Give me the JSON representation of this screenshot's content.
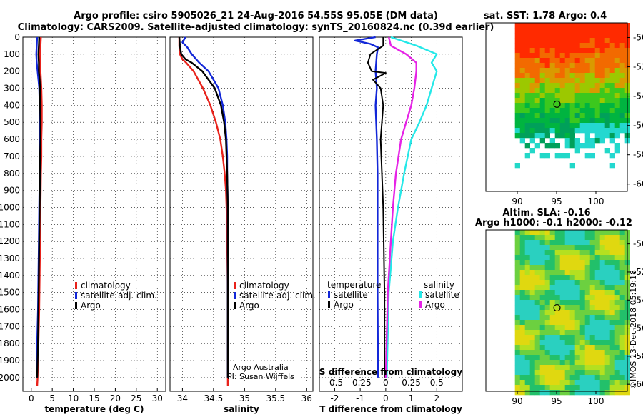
{
  "header": {
    "title_line1": "Argo profile: csiro 5905026_21 24-Aug-2016 54.55S 95.05E (DM data)",
    "title_line2": "Climatology: CARS2009. Satellite-adjusted climatology: synTS_20160824.nc (0.39d earlier)"
  },
  "colors": {
    "climatology": "#e8221b",
    "satellite": "#1227d8",
    "argo": "#000000",
    "sal_satellite": "#24e8e8",
    "sal_argo": "#e622e6"
  },
  "depth_axis": {
    "ticks": [
      "0",
      "100",
      "200",
      "300",
      "400",
      "500",
      "600",
      "700",
      "800",
      "900",
      "1000",
      "1100",
      "1200",
      "1300",
      "1400",
      "1500",
      "1600",
      "1700",
      "1800",
      "1900",
      "2000"
    ]
  },
  "chart_data": [
    {
      "type": "line",
      "name": "temperature",
      "xlabel": "temperature (deg C)",
      "xlim": [
        -2,
        32
      ],
      "ylim": [
        2080,
        0
      ],
      "xticks": [
        "0",
        "5",
        "10",
        "15",
        "20",
        "25",
        "30"
      ],
      "legend": [
        "climatology",
        "satellite-adj. clim.",
        "Argo"
      ],
      "series": [
        {
          "name": "climatology",
          "depth": [
            0,
            50,
            100,
            150,
            200,
            250,
            300,
            400,
            500,
            600,
            700,
            800,
            1000,
            1200,
            1400,
            1600,
            1800,
            2000,
            2050
          ],
          "values": [
            2.3,
            2.2,
            2.1,
            2.1,
            2.2,
            2.3,
            2.4,
            2.5,
            2.5,
            2.4,
            2.4,
            2.3,
            2.2,
            2.1,
            2.0,
            1.9,
            1.7,
            1.5,
            1.4
          ]
        },
        {
          "name": "satellite-adj. clim.",
          "depth": [
            0,
            50,
            100,
            150,
            200,
            250,
            300,
            400,
            500,
            600,
            700,
            800,
            1000,
            1200,
            1400,
            1600,
            1800,
            2000
          ],
          "values": [
            1.4,
            1.3,
            1.2,
            1.3,
            1.5,
            1.7,
            1.9,
            2.0,
            2.1,
            2.1,
            2.1,
            2.0,
            1.9,
            1.8,
            1.7,
            1.6,
            1.4,
            1.3
          ]
        },
        {
          "name": "Argo",
          "depth": [
            0,
            50,
            100,
            150,
            200,
            250,
            300,
            400,
            500,
            600,
            700,
            800,
            1000,
            1200,
            1400,
            1600,
            1800,
            2000
          ],
          "values": [
            1.9,
            1.8,
            1.7,
            1.8,
            1.8,
            2.0,
            2.1,
            2.1,
            2.2,
            2.2,
            2.1,
            2.1,
            2.0,
            1.9,
            1.8,
            1.7,
            1.6,
            1.4
          ]
        }
      ]
    },
    {
      "type": "line",
      "name": "salinity",
      "xlabel": "salinity",
      "xlim": [
        33.8,
        36.1
      ],
      "ylim": [
        2080,
        0
      ],
      "xticks": [
        "34",
        "34.5",
        "35",
        "35.5",
        "36"
      ],
      "legend": [
        "climatology",
        "satellite-adj. clim.",
        "Argo"
      ],
      "annotations": [
        "Argo Australia",
        "PI: Susan Wijffels"
      ],
      "series": [
        {
          "name": "climatology",
          "depth": [
            0,
            50,
            100,
            130,
            150,
            200,
            300,
            400,
            500,
            600,
            700,
            800,
            900,
            1000,
            1200,
            1500,
            2000,
            2050
          ],
          "values": [
            33.95,
            33.95,
            33.96,
            34.0,
            34.06,
            34.18,
            34.33,
            34.45,
            34.54,
            34.61,
            34.65,
            34.68,
            34.7,
            34.71,
            34.72,
            34.73,
            34.73,
            34.73
          ]
        },
        {
          "name": "satellite-adj. clim.",
          "depth": [
            0,
            30,
            60,
            100,
            150,
            200,
            300,
            400,
            500,
            600,
            700,
            800,
            1000,
            1500,
            2000
          ],
          "values": [
            34.05,
            34.0,
            34.08,
            34.15,
            34.27,
            34.42,
            34.58,
            34.65,
            34.69,
            34.71,
            34.72,
            34.72,
            34.73,
            34.73,
            34.73
          ]
        },
        {
          "name": "Argo",
          "depth": [
            0,
            50,
            100,
            130,
            150,
            200,
            300,
            400,
            500,
            600,
            700,
            800,
            1000,
            1500,
            2000
          ],
          "values": [
            33.95,
            33.96,
            33.98,
            34.05,
            34.15,
            34.32,
            34.52,
            34.62,
            34.67,
            34.7,
            34.71,
            34.72,
            34.73,
            34.73,
            34.73
          ]
        }
      ]
    },
    {
      "type": "line",
      "name": "difference from climatology",
      "xlabel": "T difference from climatology",
      "xlabel_top": "S difference from climatology",
      "xlim": [
        -2.6,
        3.0
      ],
      "s_xlim": [
        -0.65,
        0.75
      ],
      "ylim": [
        2080,
        0
      ],
      "xticks": [
        "-2",
        "-1",
        "0",
        "1",
        "2"
      ],
      "s_xticks": [
        "-0.5",
        "-0.25",
        "0",
        "0.25",
        "0.5"
      ],
      "legend_temp_title": "temperature",
      "legend_sal_title": "salinity",
      "legend_temp": [
        "satellite",
        "Argo"
      ],
      "legend_sal": [
        "satellite",
        "Argo"
      ],
      "series": [
        {
          "name": "temperature satellite",
          "depth": [
            0,
            20,
            40,
            60,
            100,
            200,
            300,
            400,
            600,
            800,
            1000,
            1500,
            2000
          ],
          "values": [
            -0.4,
            -1.2,
            -0.6,
            -0.3,
            -0.35,
            -0.4,
            -0.35,
            -0.4,
            -0.35,
            -0.32,
            -0.32,
            -0.32,
            -0.3
          ]
        },
        {
          "name": "temperature Argo",
          "depth": [
            0,
            50,
            100,
            150,
            200,
            210,
            250,
            300,
            400,
            600,
            800,
            1000,
            1500,
            2000
          ],
          "values": [
            -0.1,
            -0.1,
            -0.6,
            -0.7,
            -0.55,
            0.0,
            -0.5,
            -0.2,
            -0.1,
            -0.2,
            -0.15,
            -0.1,
            -0.05,
            -0.05
          ]
        },
        {
          "name": "salinity satellite",
          "depth": [
            0,
            50,
            100,
            150,
            200,
            300,
            400,
            500,
            600,
            800,
            1000,
            1200,
            1500,
            2000
          ],
          "values": [
            0.05,
            0.3,
            0.5,
            0.45,
            0.5,
            0.45,
            0.4,
            0.33,
            0.25,
            0.18,
            0.12,
            0.07,
            0.03,
            0.01
          ]
        },
        {
          "name": "salinity Argo",
          "depth": [
            0,
            50,
            100,
            150,
            200,
            300,
            400,
            500,
            600,
            800,
            1000,
            1200,
            1500,
            2000
          ],
          "values": [
            0.03,
            0.05,
            0.2,
            0.3,
            0.3,
            0.28,
            0.25,
            0.2,
            0.15,
            0.1,
            0.07,
            0.05,
            0.02,
            0.0
          ]
        }
      ]
    },
    {
      "type": "heatmap",
      "name": "sat. SST",
      "title": "sat. SST: 1.78 Argo: 0.4",
      "xticks": [
        "90",
        "95",
        "100"
      ],
      "yticks": [
        "-50",
        "-52",
        "-54",
        "-56",
        "-58",
        "-60"
      ],
      "xlim": [
        86,
        104
      ],
      "ylim": [
        -60.5,
        -49
      ],
      "float_position": {
        "lon": 95.05,
        "lat": -54.55
      }
    },
    {
      "type": "heatmap",
      "name": "Altim. SLA",
      "title_line1": "Altim. SLA: -0.16",
      "title_line2": "Argo h1000: -0.1 h2000: -0.12",
      "xticks": [
        "90",
        "95",
        "100"
      ],
      "yticks": [
        "-50",
        "-52",
        "-54",
        "-56",
        "-58",
        "-60"
      ],
      "xlim": [
        86,
        104
      ],
      "ylim": [
        -60.5,
        -49
      ],
      "float_position": {
        "lon": 95.05,
        "lat": -54.55
      }
    }
  ],
  "footer": {
    "watermark": "©IMOS 13-Dec-2018 05:19:18"
  }
}
